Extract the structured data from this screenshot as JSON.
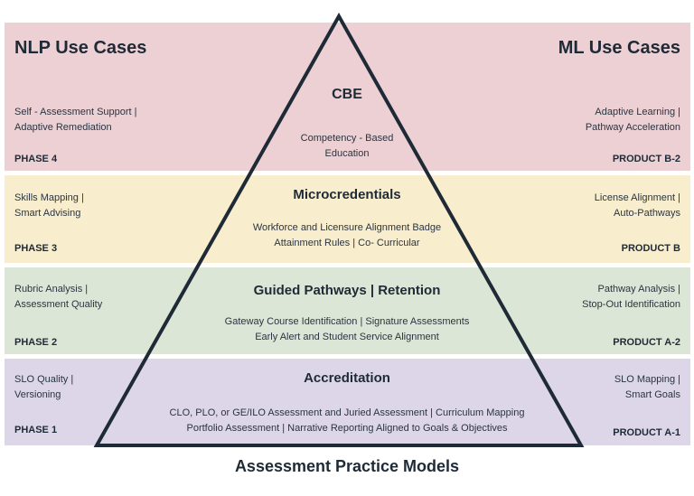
{
  "headings": {
    "left": "NLP Use Cases",
    "right": "ML Use Cases"
  },
  "tiers": {
    "phase4": {
      "title": "CBE",
      "desc": [
        "Competency - Based",
        "Education"
      ],
      "left_text": [
        "Self - Assessment Support |",
        "Adaptive Remediation"
      ],
      "right_text": [
        "Adaptive Learning |",
        "Pathway Acceleration"
      ],
      "left_tag": "PHASE 4",
      "right_tag": "PRODUCT B-2"
    },
    "phase3": {
      "title": "Microcredentials",
      "desc": [
        "Workforce and Licensure Alignment Badge",
        "Attainment Rules | Co- Curricular"
      ],
      "left_text": [
        "Skills Mapping |",
        "Smart Advising"
      ],
      "right_text": [
        "License Alignment |",
        "Auto-Pathways"
      ],
      "left_tag": "PHASE 3",
      "right_tag": "PRODUCT B"
    },
    "phase2": {
      "title": "Guided Pathways | Retention",
      "desc": [
        "Gateway Course Identification | Signature Assessments",
        "Early Alert and Student Service Alignment"
      ],
      "left_text": [
        "Rubric Analysis |",
        "Assessment Quality"
      ],
      "right_text": [
        "Pathway Analysis |",
        "Stop-Out Identification"
      ],
      "left_tag": "PHASE 2",
      "right_tag": "PRODUCT A-2"
    },
    "phase1": {
      "title": "Accreditation",
      "desc": [
        "CLO, PLO, or GE/ILO Assessment and Juried Assessment | Curriculum Mapping",
        "Portfolio Assessment | Narrative Reporting Aligned to Goals & Objectives"
      ],
      "left_text": [
        "SLO Quality |",
        "Versioning"
      ],
      "right_text": [
        "SLO Mapping |",
        "Smart Goals"
      ],
      "left_tag": "PHASE 1",
      "right_tag": "PRODUCT A-1"
    }
  },
  "footer": "Assessment Practice Models",
  "colors": {
    "phase4_band": "#ecd0d3",
    "phase3_band": "#f8edcd",
    "phase2_band": "#dce6d6",
    "phase1_band": "#dcd6e8",
    "outline": "#1f2a37"
  }
}
